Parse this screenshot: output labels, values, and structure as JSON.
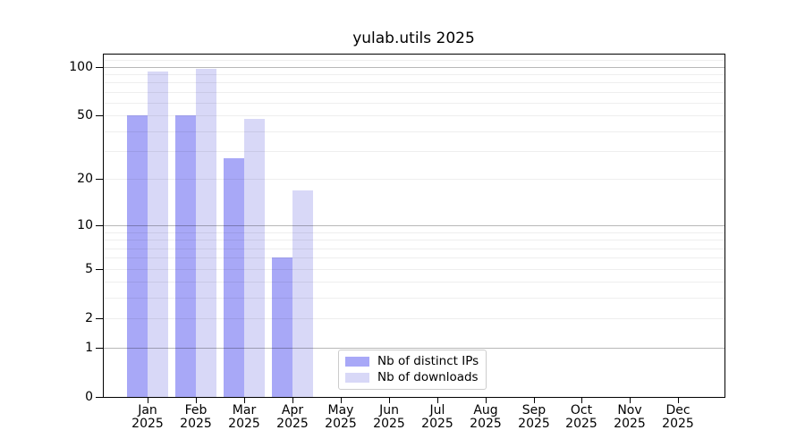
{
  "title": "yulab.utils 2025",
  "legend": {
    "items": [
      {
        "label": "Nb of distinct IPs",
        "swatch_color": "#a8a8f7"
      },
      {
        "label": "Nb of downloads",
        "swatch_color": "#d8d8f7"
      }
    ]
  },
  "chart_data": {
    "type": "bar",
    "title": "yulab.utils 2025",
    "x_categories": [
      "Jan",
      "Feb",
      "Mar",
      "Apr",
      "May",
      "Jun",
      "Jul",
      "Aug",
      "Sep",
      "Oct",
      "Nov",
      "Dec"
    ],
    "x_year_label": "2025",
    "series": [
      {
        "name": "Nb of distinct IPs",
        "color": "#a8a8f7",
        "values": [
          50,
          50,
          27,
          6,
          null,
          null,
          null,
          null,
          null,
          null,
          null,
          null
        ]
      },
      {
        "name": "Nb of downloads",
        "color": "#d8d8f7",
        "values": [
          94,
          97,
          48,
          17,
          null,
          null,
          null,
          null,
          null,
          null,
          null,
          null
        ]
      }
    ],
    "y_scale": "log10(1+x)",
    "y_tick_labels": [
      0,
      1,
      2,
      5,
      10,
      20,
      50,
      100
    ],
    "y_major_gridlines": [
      1,
      10,
      100
    ],
    "y_minor_gridlines": [
      2,
      3,
      4,
      5,
      6,
      7,
      8,
      9,
      20,
      30,
      40,
      50,
      60,
      70,
      80,
      90,
      110
    ],
    "y_max": 121,
    "ylim": [
      0,
      121
    ],
    "legend_position": "lower center",
    "grid": "horizontal"
  },
  "colors": {
    "background": "#ffffff",
    "spine": "#000000",
    "text": "#000000",
    "major_grid": "rgba(0,0,0,0.28)",
    "minor_grid": "rgba(0,0,0,0.065)",
    "legend_border": "#cccccc"
  }
}
